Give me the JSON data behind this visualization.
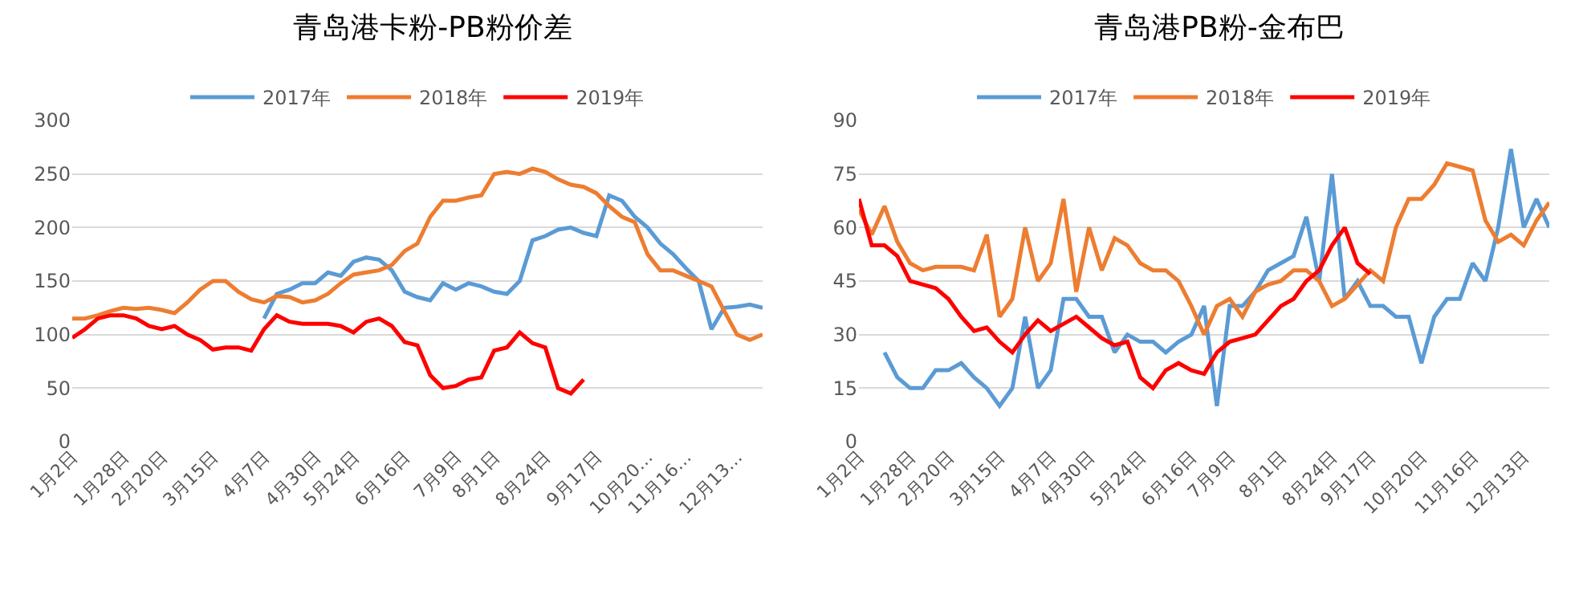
{
  "chart_data": [
    {
      "type": "line",
      "title": "青岛港卡粉-PB粉价差",
      "categories": [
        "1月2日",
        null,
        null,
        null,
        "1月28日",
        null,
        null,
        "2月20日",
        null,
        null,
        null,
        "3月15日",
        null,
        null,
        null,
        "4月7日",
        null,
        null,
        null,
        "4月30日",
        null,
        null,
        "5月24日",
        null,
        null,
        null,
        "6月16日",
        null,
        null,
        null,
        "7月9日",
        null,
        null,
        "8月1日",
        null,
        null,
        null,
        "8月24日",
        null,
        null,
        null,
        "9月17日",
        null,
        null,
        null,
        "10月20…",
        null,
        null,
        "11月16…",
        null,
        null,
        null,
        "12月13…",
        null,
        null
      ],
      "series": [
        {
          "name": "2017年",
          "color": "#5b9bd5",
          "values": [
            null,
            null,
            null,
            null,
            null,
            null,
            null,
            null,
            null,
            null,
            null,
            null,
            null,
            null,
            null,
            115,
            138,
            142,
            148,
            148,
            158,
            155,
            168,
            172,
            170,
            160,
            140,
            135,
            132,
            148,
            142,
            148,
            145,
            140,
            138,
            150,
            188,
            192,
            198,
            200,
            195,
            192,
            230,
            225,
            210,
            200,
            185,
            175,
            162,
            150,
            105,
            125,
            126,
            128,
            125
          ]
        },
        {
          "name": "2018年",
          "color": "#ed7d31",
          "values": [
            115,
            115,
            118,
            122,
            125,
            124,
            125,
            123,
            120,
            130,
            142,
            150,
            150,
            140,
            133,
            130,
            136,
            135,
            130,
            132,
            138,
            148,
            156,
            158,
            160,
            165,
            178,
            185,
            210,
            225,
            225,
            228,
            230,
            250,
            252,
            250,
            255,
            252,
            245,
            240,
            238,
            232,
            220,
            210,
            205,
            175,
            160,
            160,
            155,
            150,
            145,
            122,
            100,
            95,
            100
          ]
        },
        {
          "name": "2019年",
          "color": "#ff0000",
          "values": [
            97,
            105,
            115,
            118,
            118,
            115,
            108,
            105,
            108,
            100,
            95,
            86,
            88,
            88,
            85,
            105,
            118,
            112,
            110,
            110,
            110,
            108,
            102,
            112,
            115,
            108,
            93,
            90,
            62,
            50,
            52,
            58,
            60,
            85,
            88,
            102,
            92,
            88,
            50,
            45,
            58,
            null,
            null,
            null,
            null,
            null,
            null,
            null,
            null,
            null,
            null,
            null,
            null,
            null,
            null
          ]
        }
      ],
      "ylim": [
        0,
        300
      ],
      "yticks": [
        0,
        50,
        100,
        150,
        200,
        250,
        300
      ],
      "grid": "y",
      "legend": "top"
    },
    {
      "type": "line",
      "title": "青岛港PB粉-金布巴",
      "categories": [
        "1月2日",
        null,
        null,
        null,
        "1月28日",
        null,
        null,
        "2月20日",
        null,
        null,
        null,
        "3月15日",
        null,
        null,
        null,
        "4月7日",
        null,
        null,
        "4月30日",
        null,
        null,
        null,
        "5月24日",
        null,
        null,
        null,
        "6月16日",
        null,
        null,
        "7月9日",
        null,
        null,
        null,
        "8月1日",
        null,
        null,
        null,
        "8月24日",
        null,
        null,
        "9月17日",
        null,
        null,
        null,
        "10月20日",
        null,
        null,
        null,
        "11月16日",
        null,
        null,
        null,
        "12月13日",
        null,
        null
      ],
      "series": [
        {
          "name": "2017年",
          "color": "#5b9bd5",
          "values": [
            null,
            null,
            25,
            18,
            15,
            15,
            20,
            20,
            22,
            18,
            15,
            10,
            15,
            35,
            15,
            20,
            40,
            40,
            35,
            35,
            25,
            30,
            28,
            28,
            25,
            28,
            30,
            38,
            10,
            38,
            38,
            42,
            48,
            50,
            52,
            63,
            45,
            75,
            40,
            45,
            38,
            38,
            35,
            35,
            22,
            35,
            40,
            40,
            50,
            45,
            60,
            82,
            60,
            68,
            60
          ]
        },
        {
          "name": "2018年",
          "color": "#ed7d31",
          "values": [
            65,
            58,
            66,
            56,
            50,
            48,
            49,
            49,
            49,
            48,
            58,
            35,
            40,
            60,
            45,
            50,
            68,
            42,
            60,
            48,
            57,
            55,
            50,
            48,
            48,
            45,
            38,
            30,
            38,
            40,
            35,
            42,
            44,
            45,
            48,
            48,
            45,
            38,
            40,
            44,
            48,
            45,
            60,
            68,
            68,
            72,
            78,
            77,
            76,
            62,
            56,
            58,
            55,
            62,
            67
          ]
        },
        {
          "name": "2019年",
          "color": "#ff0000",
          "values": [
            68,
            55,
            55,
            52,
            45,
            44,
            43,
            40,
            35,
            31,
            32,
            28,
            25,
            30,
            34,
            31,
            33,
            35,
            32,
            29,
            27,
            28,
            18,
            15,
            20,
            22,
            20,
            19,
            25,
            28,
            29,
            30,
            34,
            38,
            40,
            45,
            48,
            55,
            60,
            50,
            47,
            null,
            null,
            null,
            null,
            null,
            null,
            null,
            null,
            null,
            null,
            null,
            null,
            null,
            null
          ]
        }
      ],
      "ylim": [
        0,
        90
      ],
      "yticks": [
        0,
        15,
        30,
        45,
        60,
        75,
        90
      ],
      "grid": "y",
      "legend": "top"
    }
  ]
}
